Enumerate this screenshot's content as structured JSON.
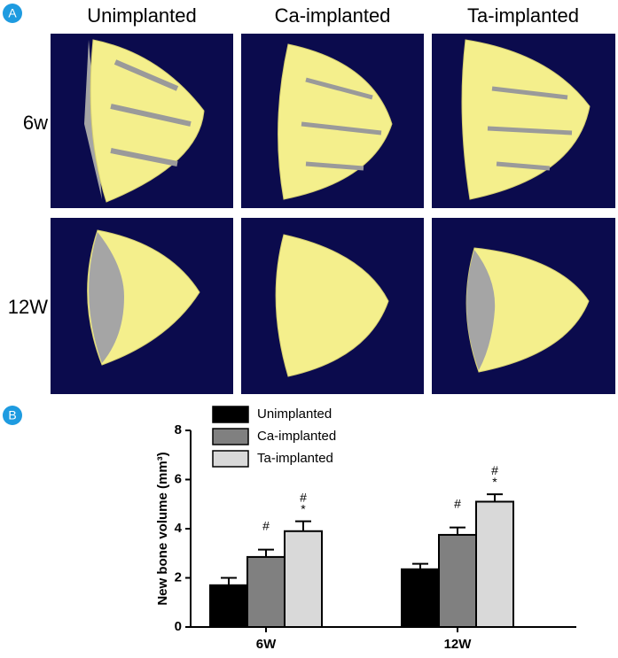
{
  "panel_labels": [
    "A",
    "B"
  ],
  "panel_a": {
    "columns": [
      "Unimplanted",
      "Ca-implanted",
      "Ta-implanted"
    ],
    "rows": [
      "6w",
      "12W"
    ]
  },
  "chart_data": {
    "type": "bar",
    "ylabel": "New bone volume (mm³)",
    "categories": [
      "6W",
      "12W"
    ],
    "series": [
      {
        "name": "Unimplanted",
        "color": "#000000",
        "values": [
          1.7,
          2.35
        ],
        "errors": [
          0.3,
          0.22
        ]
      },
      {
        "name": "Ca-implanted",
        "color": "#808080",
        "values": [
          2.85,
          3.75
        ],
        "errors": [
          0.3,
          0.3
        ],
        "annotations": [
          [
            "#"
          ],
          [
            "#"
          ]
        ]
      },
      {
        "name": "Ta-implanted",
        "color": "#d9d9d9",
        "values": [
          3.9,
          5.1
        ],
        "errors": [
          0.4,
          0.3
        ],
        "annotations": [
          [
            "#",
            "*"
          ],
          [
            "#",
            "*"
          ]
        ]
      }
    ],
    "ylim": [
      0,
      8
    ],
    "yticks": [
      0,
      2,
      4,
      6,
      8
    ]
  }
}
